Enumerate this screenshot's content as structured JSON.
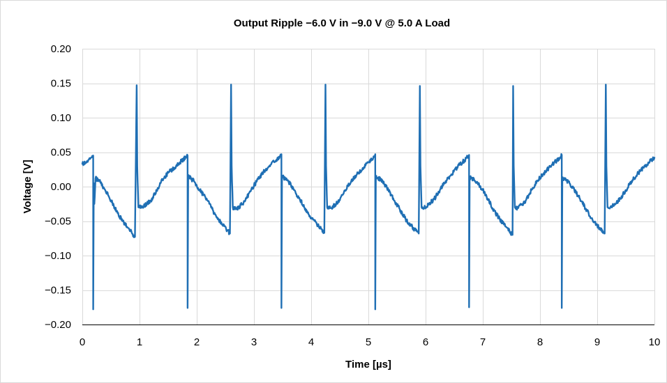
{
  "chart_data": {
    "type": "line",
    "title": "Output Ripple −6.0 V in −9.0 V @ 5.0 A Load",
    "xlabel": "Time [µs]",
    "ylabel": "Voltage [V]",
    "xlim": [
      0,
      10
    ],
    "ylim": [
      -0.2,
      0.2
    ],
    "x_ticks": [
      "0",
      "1",
      "2",
      "3",
      "4",
      "5",
      "6",
      "7",
      "8",
      "9",
      "10"
    ],
    "y_ticks": [
      "0.20",
      "0.15",
      "0.10",
      "0.05",
      "0.00",
      "−0.05",
      "−0.10",
      "−0.15",
      "−0.20"
    ],
    "grid": true,
    "series": [
      {
        "color": "#1f6fb4",
        "points": [
          [
            0.0,
            0.033
          ],
          [
            0.08,
            0.037
          ],
          [
            0.15,
            0.042
          ],
          [
            0.19,
            0.045
          ],
          [
            0.19,
            -0.178
          ],
          [
            0.2,
            0.005
          ],
          [
            0.21,
            -0.025
          ],
          [
            0.23,
            0.012
          ],
          [
            0.3,
            0.008
          ],
          [
            0.4,
            -0.005
          ],
          [
            0.5,
            -0.02
          ],
          [
            0.6,
            -0.035
          ],
          [
            0.7,
            -0.05
          ],
          [
            0.8,
            -0.06
          ],
          [
            0.92,
            -0.073
          ],
          [
            0.95,
            0.147
          ],
          [
            0.96,
            0.03
          ],
          [
            0.98,
            -0.03
          ],
          [
            1.05,
            -0.03
          ],
          [
            1.2,
            -0.02
          ],
          [
            1.3,
            -0.005
          ],
          [
            1.4,
            0.01
          ],
          [
            1.5,
            0.02
          ],
          [
            1.6,
            0.027
          ],
          [
            1.7,
            0.035
          ],
          [
            1.8,
            0.042
          ],
          [
            1.84,
            0.045
          ],
          [
            1.84,
            -0.176
          ],
          [
            1.85,
            0.015
          ],
          [
            1.95,
            0.008
          ],
          [
            2.05,
            -0.005
          ],
          [
            2.15,
            -0.015
          ],
          [
            2.25,
            -0.03
          ],
          [
            2.35,
            -0.045
          ],
          [
            2.45,
            -0.055
          ],
          [
            2.58,
            -0.068
          ],
          [
            2.6,
            0.148
          ],
          [
            2.61,
            0.03
          ],
          [
            2.63,
            -0.03
          ],
          [
            2.7,
            -0.033
          ],
          [
            2.85,
            -0.02
          ],
          [
            2.95,
            -0.005
          ],
          [
            3.05,
            0.008
          ],
          [
            3.15,
            0.02
          ],
          [
            3.25,
            0.028
          ],
          [
            3.35,
            0.036
          ],
          [
            3.45,
            0.043
          ],
          [
            3.48,
            0.047
          ],
          [
            3.48,
            -0.176
          ],
          [
            3.49,
            0.015
          ],
          [
            3.6,
            0.008
          ],
          [
            3.7,
            -0.005
          ],
          [
            3.8,
            -0.018
          ],
          [
            3.9,
            -0.032
          ],
          [
            4.0,
            -0.045
          ],
          [
            4.1,
            -0.055
          ],
          [
            4.23,
            -0.067
          ],
          [
            4.25,
            0.148
          ],
          [
            4.26,
            0.03
          ],
          [
            4.28,
            -0.03
          ],
          [
            4.35,
            -0.031
          ],
          [
            4.5,
            -0.02
          ],
          [
            4.6,
            -0.005
          ],
          [
            4.7,
            0.008
          ],
          [
            4.8,
            0.018
          ],
          [
            4.9,
            0.027
          ],
          [
            5.0,
            0.035
          ],
          [
            5.1,
            0.043
          ],
          [
            5.12,
            0.047
          ],
          [
            5.12,
            -0.178
          ],
          [
            5.13,
            0.015
          ],
          [
            5.25,
            0.008
          ],
          [
            5.35,
            -0.005
          ],
          [
            5.45,
            -0.02
          ],
          [
            5.55,
            -0.033
          ],
          [
            5.65,
            -0.047
          ],
          [
            5.75,
            -0.057
          ],
          [
            5.88,
            -0.068
          ],
          [
            5.9,
            0.146
          ],
          [
            5.91,
            0.03
          ],
          [
            5.93,
            -0.03
          ],
          [
            6.0,
            -0.03
          ],
          [
            6.15,
            -0.018
          ],
          [
            6.25,
            -0.005
          ],
          [
            6.35,
            0.008
          ],
          [
            6.45,
            0.018
          ],
          [
            6.55,
            0.028
          ],
          [
            6.65,
            0.036
          ],
          [
            6.75,
            0.044
          ],
          [
            6.76,
            0.046
          ],
          [
            6.76,
            -0.175
          ],
          [
            6.77,
            0.013
          ],
          [
            6.9,
            0.007
          ],
          [
            7.0,
            -0.005
          ],
          [
            7.1,
            -0.02
          ],
          [
            7.2,
            -0.035
          ],
          [
            7.3,
            -0.048
          ],
          [
            7.4,
            -0.058
          ],
          [
            7.52,
            -0.07
          ],
          [
            7.53,
            0.146
          ],
          [
            7.54,
            0.03
          ],
          [
            7.56,
            -0.03
          ],
          [
            7.62,
            -0.031
          ],
          [
            7.75,
            -0.02
          ],
          [
            7.85,
            -0.005
          ],
          [
            7.95,
            0.008
          ],
          [
            8.05,
            0.018
          ],
          [
            8.15,
            0.027
          ],
          [
            8.25,
            0.035
          ],
          [
            8.35,
            0.042
          ],
          [
            8.38,
            0.046
          ],
          [
            8.38,
            -0.176
          ],
          [
            8.39,
            0.013
          ],
          [
            8.5,
            0.007
          ],
          [
            8.6,
            -0.005
          ],
          [
            8.7,
            -0.018
          ],
          [
            8.8,
            -0.032
          ],
          [
            8.9,
            -0.046
          ],
          [
            9.0,
            -0.056
          ],
          [
            9.13,
            -0.068
          ],
          [
            9.15,
            0.148
          ],
          [
            9.16,
            0.03
          ],
          [
            9.18,
            -0.03
          ],
          [
            9.25,
            -0.03
          ],
          [
            9.4,
            -0.018
          ],
          [
            9.5,
            -0.005
          ],
          [
            9.6,
            0.008
          ],
          [
            9.7,
            0.018
          ],
          [
            9.8,
            0.027
          ],
          [
            9.9,
            0.035
          ],
          [
            10.0,
            0.042
          ]
        ]
      }
    ]
  }
}
